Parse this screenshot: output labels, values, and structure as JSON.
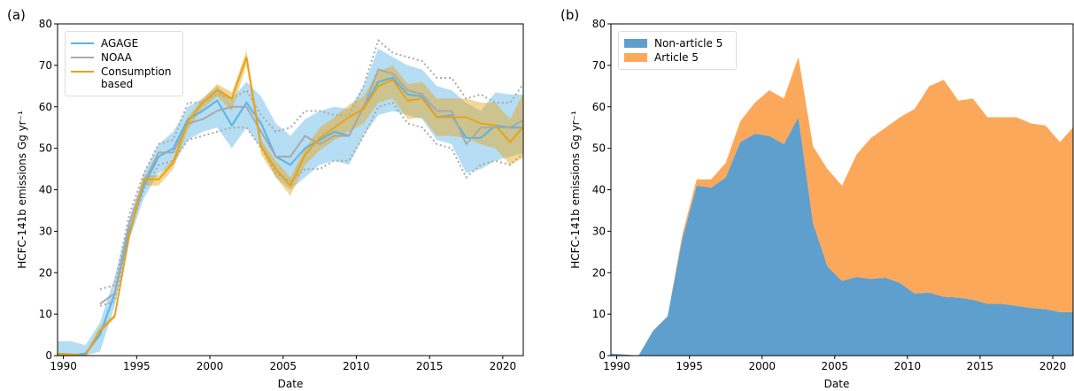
{
  "chart_data": [
    {
      "type": "line",
      "panel_label": "(a)",
      "xlabel": "Date",
      "ylabel": "HCFC-141b emissions Gg yr⁻¹",
      "x": [
        1989.5,
        1990.5,
        1991.5,
        1992.5,
        1993.5,
        1994.5,
        1995.5,
        1996.5,
        1997.5,
        1998.5,
        1999.5,
        2000.5,
        2001.5,
        2002.5,
        2003.5,
        2004.5,
        2005.5,
        2006.5,
        2007.5,
        2008.5,
        2009.5,
        2010.5,
        2011.5,
        2012.5,
        2013.5,
        2014.5,
        2015.5,
        2016.5,
        2017.5,
        2018.5,
        2019.5,
        2020.5,
        2021.5
      ],
      "xlim": [
        1989.6,
        2021.4
      ],
      "xticks": [
        1990,
        1995,
        2000,
        2005,
        2010,
        2015,
        2020
      ],
      "ylim": [
        0,
        80
      ],
      "yticks": [
        0,
        10,
        20,
        30,
        40,
        50,
        60,
        70,
        80
      ],
      "series": [
        {
          "name": "AGAGE",
          "color": "#5ab4e5",
          "band": "fill",
          "values": [
            0,
            0,
            0.5,
            5,
            15,
            30,
            41,
            48,
            50,
            57,
            59,
            61.5,
            55.5,
            61,
            56,
            48,
            46,
            50,
            52,
            54,
            53,
            60,
            66,
            67,
            63,
            62.5,
            57.5,
            58,
            52.5,
            52.5,
            55.5,
            55,
            55
          ],
          "upper": [
            3.5,
            3.5,
            2.5,
            8,
            19,
            33,
            44,
            51,
            54,
            60,
            62,
            65,
            62,
            66,
            62.5,
            56,
            53,
            57,
            59,
            60,
            59.5,
            65,
            74,
            72,
            70,
            69,
            65,
            64,
            61,
            59,
            63.5,
            63,
            63
          ],
          "lower": [
            0,
            0,
            0,
            1,
            12,
            28,
            38,
            44,
            46,
            52,
            54,
            55,
            50,
            55,
            50,
            43,
            40,
            43,
            46,
            47,
            46,
            53,
            58,
            59,
            58,
            57,
            52,
            51,
            44,
            45,
            47,
            48,
            49
          ]
        },
        {
          "name": "NOAA",
          "color": "#a9a9a9",
          "band": "dotted",
          "values": [
            null,
            null,
            null,
            12.5,
            15,
            32,
            42,
            49,
            49,
            56,
            57,
            59,
            60,
            60,
            54,
            48,
            48,
            53,
            51,
            53,
            53,
            60,
            69,
            68,
            64,
            63,
            59,
            59,
            51,
            55,
            55,
            55,
            57
          ],
          "upper": [
            null,
            null,
            null,
            16,
            17,
            34,
            44,
            51,
            52,
            61,
            61,
            63,
            62,
            64,
            58,
            54,
            55,
            59,
            59,
            58,
            58,
            65,
            76,
            73,
            72,
            71,
            67,
            67,
            62,
            63,
            61,
            61,
            66
          ],
          "lower": [
            null,
            null,
            null,
            12,
            13,
            30,
            40,
            46,
            47,
            52,
            53,
            54,
            55,
            55,
            50,
            44,
            42,
            45,
            45,
            47,
            47,
            53,
            60,
            61,
            56,
            55,
            51,
            50,
            43,
            46,
            47,
            46,
            49
          ]
        },
        {
          "name": "Consumption based",
          "color": "#e8a317",
          "band": "fill",
          "values": [
            0.5,
            0.3,
            0,
            6,
            9.5,
            29,
            42.5,
            42.5,
            46.5,
            56.5,
            61,
            64,
            62,
            72,
            50.5,
            45,
            41,
            48.5,
            52.5,
            55,
            57.5,
            59.5,
            65,
            66.5,
            61.5,
            62,
            57.5,
            57.5,
            57.5,
            56,
            55.5,
            51.5,
            55.5
          ],
          "upper": [
            0.5,
            0.5,
            0.5,
            7,
            10,
            30,
            43.5,
            43.5,
            47.5,
            57.5,
            62,
            65.5,
            63.5,
            73.5,
            52,
            47,
            43,
            50,
            55,
            57.5,
            60.5,
            62.5,
            68.5,
            70,
            65.5,
            66,
            62,
            62,
            62,
            61,
            61,
            57,
            64
          ],
          "lower": [
            0.3,
            0.3,
            0,
            5.5,
            9,
            28,
            41,
            41,
            45,
            54.5,
            59.5,
            62.5,
            59,
            70,
            48.5,
            43,
            38.5,
            46,
            49.5,
            52,
            54,
            56,
            61,
            62,
            57,
            57.5,
            53,
            53,
            52.5,
            51,
            50,
            46,
            48
          ]
        }
      ]
    },
    {
      "type": "stackedarea",
      "panel_label": "(b)",
      "xlabel": "Date",
      "ylabel": "HCFC-141b emissions Gg yr⁻¹",
      "x": [
        1989.5,
        1990.5,
        1991.5,
        1992.5,
        1993.5,
        1994.5,
        1995.5,
        1996.5,
        1997.5,
        1998.5,
        1999.5,
        2000.5,
        2001.5,
        2002.5,
        2003.5,
        2004.5,
        2005.5,
        2006.5,
        2007.5,
        2008.5,
        2009.5,
        2010.5,
        2011.5,
        2012.5,
        2013.5,
        2014.5,
        2015.5,
        2016.5,
        2017.5,
        2018.5,
        2019.5,
        2020.5,
        2021.5
      ],
      "xlim": [
        1989.6,
        2021.4
      ],
      "xticks": [
        1990,
        1995,
        2000,
        2005,
        2010,
        2015,
        2020
      ],
      "ylim": [
        0,
        80
      ],
      "yticks": [
        0,
        10,
        20,
        30,
        40,
        50,
        60,
        70,
        80
      ],
      "series": [
        {
          "name": "Non-article 5",
          "color": "#5f9fcd",
          "values": [
            0.5,
            0.3,
            0,
            6,
            9.5,
            28,
            41,
            40.5,
            43,
            51.5,
            53.5,
            53,
            51,
            57.5,
            32,
            21.5,
            18,
            19,
            18.5,
            18.8,
            17.5,
            15,
            15.2,
            14.2,
            14,
            13.5,
            12.5,
            12.5,
            12,
            11.5,
            11.2,
            10.5,
            10.5
          ]
        },
        {
          "name": "Article 5",
          "color": "#fca85a",
          "values": [
            0,
            0,
            0,
            0,
            0,
            1,
            1.5,
            2,
            3.5,
            5,
            7.5,
            11,
            11,
            14.5,
            18.5,
            23.5,
            23,
            29.5,
            34,
            36.2,
            40,
            44.5,
            49.8,
            52.3,
            47.5,
            48.5,
            45,
            45,
            45.5,
            44.5,
            44.3,
            41,
            45
          ]
        }
      ]
    }
  ]
}
